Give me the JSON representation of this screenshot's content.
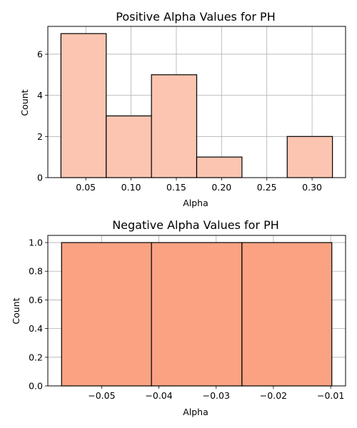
{
  "chart_data": [
    {
      "type": "bar",
      "title": "Positive Alpha Values for PH",
      "xlabel": "Alpha",
      "ylabel": "Count",
      "bin_edges": [
        0.0225,
        0.0725,
        0.1225,
        0.1725,
        0.2225,
        0.2725,
        0.3225
      ],
      "values": [
        7,
        3,
        5,
        1,
        0,
        2
      ],
      "xlim": [
        0.008,
        0.337
      ],
      "ylim": [
        0,
        7.35
      ],
      "xticks": [
        0.05,
        0.1,
        0.15,
        0.2,
        0.25,
        0.3
      ],
      "xtick_labels": [
        "0.05",
        "0.10",
        "0.15",
        "0.20",
        "0.25",
        "0.30"
      ],
      "yticks": [
        0,
        2,
        4,
        6
      ],
      "ytick_labels": [
        "0",
        "2",
        "4",
        "6"
      ],
      "grid": true,
      "bar_color": "#fcc5b1",
      "edge_color": "#000000"
    },
    {
      "type": "bar",
      "title": "Negative Alpha Values for PH",
      "xlabel": "Alpha",
      "ylabel": "Count",
      "bin_edges": [
        -0.057,
        -0.0413,
        -0.0255,
        -0.0098
      ],
      "values": [
        1,
        1,
        1
      ],
      "xlim": [
        -0.0594,
        -0.0074
      ],
      "ylim": [
        0,
        1.05
      ],
      "xticks": [
        -0.05,
        -0.04,
        -0.03,
        -0.02,
        -0.01
      ],
      "xtick_labels": [
        "−0.05",
        "−0.04",
        "−0.03",
        "−0.02",
        "−0.01"
      ],
      "yticks": [
        0,
        0.2,
        0.4,
        0.6,
        0.8,
        1.0
      ],
      "ytick_labels": [
        "0.0",
        "0.2",
        "0.4",
        "0.6",
        "0.8",
        "1.0"
      ],
      "grid": true,
      "bar_color": "#fba283",
      "edge_color": "#000000"
    }
  ]
}
